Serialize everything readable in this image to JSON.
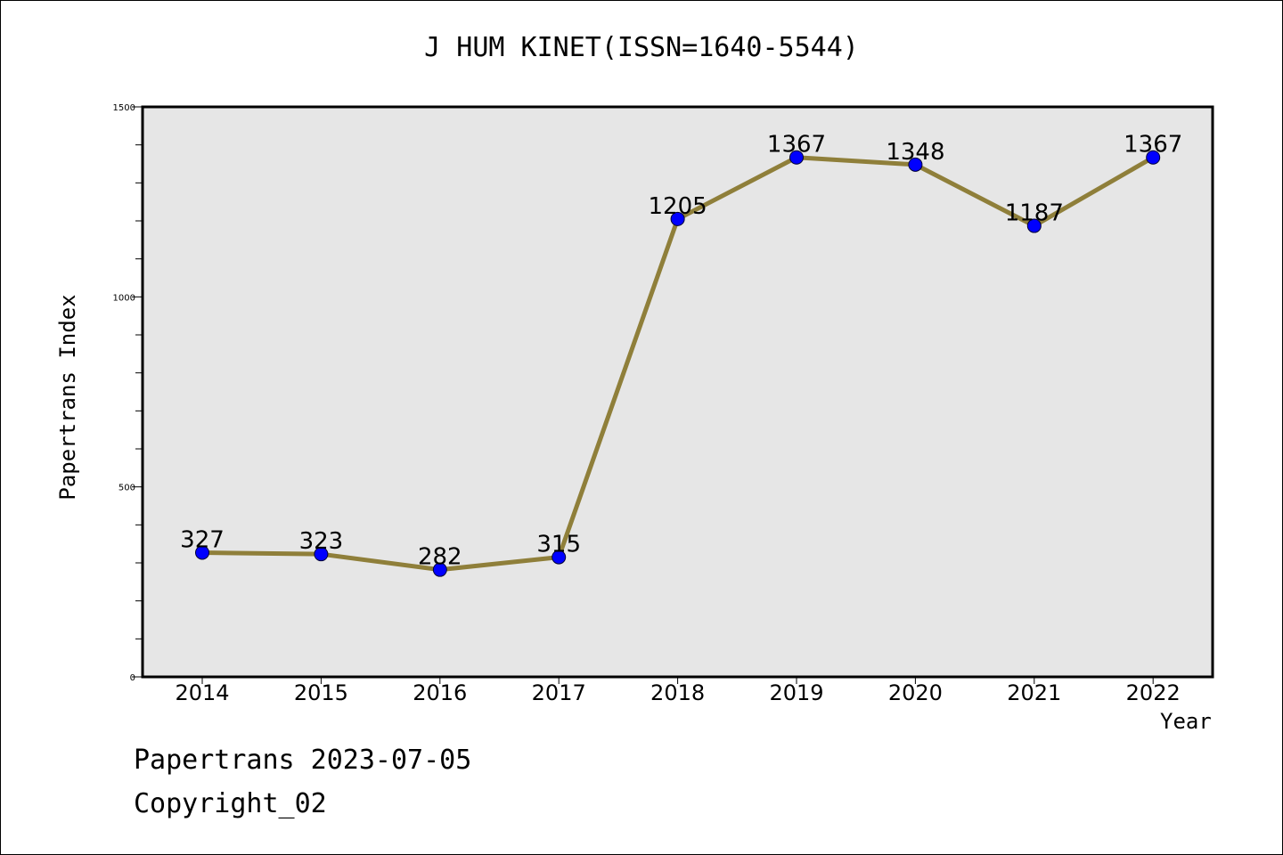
{
  "chart_data": {
    "type": "line",
    "title": "J HUM KINET(ISSN=1640-5544)",
    "xlabel": "Year",
    "ylabel": "Papertrans Index",
    "categories": [
      "2014",
      "2015",
      "2016",
      "2017",
      "2018",
      "2019",
      "2020",
      "2021",
      "2022"
    ],
    "series": [
      {
        "values": [
          327,
          323,
          282,
          315,
          1205,
          1367,
          1348,
          1187,
          1367
        ]
      }
    ],
    "ylim": [
      0,
      1500
    ],
    "yticks": [
      0,
      500,
      1000,
      1500
    ],
    "grid": false,
    "colors": {
      "line": "#8f7f3a",
      "marker": "#0000ff",
      "plot_bg": "#e6e6e6"
    }
  },
  "footer": {
    "source": "Papertrans 2023-07-05",
    "copyright": "Copyright_02"
  }
}
